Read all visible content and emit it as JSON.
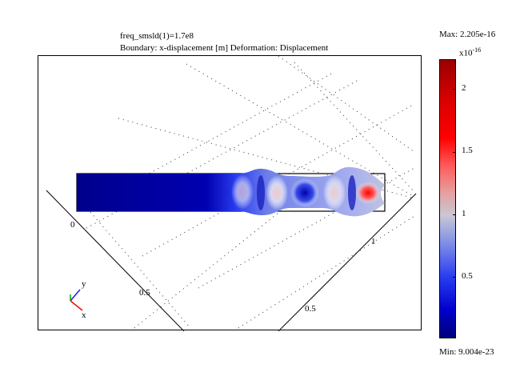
{
  "plot": {
    "title_line1": "freq_smsld(1)=1.7e8",
    "title_line2": "Boundary: x-displacement [m] Deformation: Displacement"
  },
  "axes": {
    "x_ticks": [
      "0",
      "0.5"
    ],
    "depth_ticks": [
      "1",
      "0.5"
    ],
    "triad_y": "y",
    "triad_x": "x"
  },
  "colorbar": {
    "max_label": "Max: 2.205e-16",
    "min_label": "Min: 9.004e-23",
    "exponent": "x10",
    "exponent_power": "-16",
    "ticks": [
      "2",
      "1.5",
      "1",
      "0.5"
    ],
    "colors": [
      "#00007a",
      "#2a3ef0",
      "#c8c8d4",
      "#ff0000",
      "#990000"
    ]
  }
}
